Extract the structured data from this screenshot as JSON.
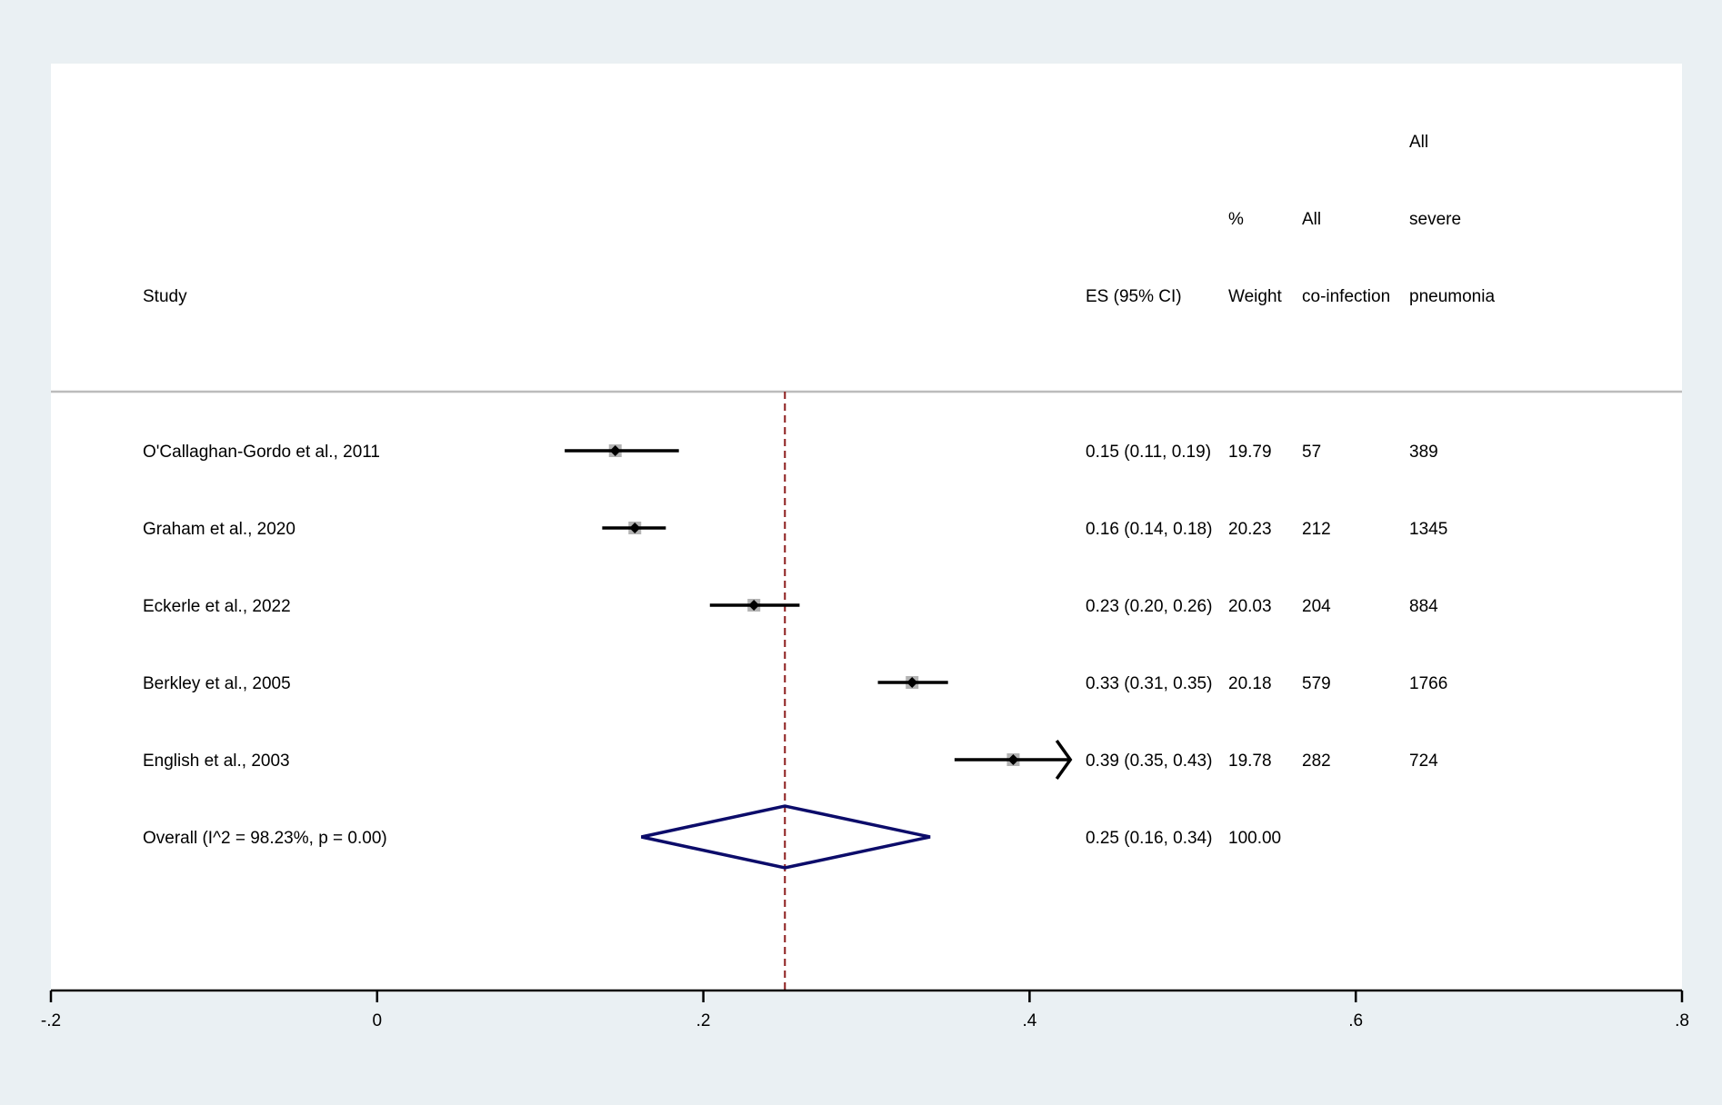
{
  "columns": {
    "study": "Study",
    "es": "ES (95% CI)",
    "weight_line1": "%",
    "weight_line2": "Weight",
    "coinf_line1": "All",
    "coinf_line2": "co-infection",
    "pneu_line1": "All",
    "pneu_line2": "severe",
    "pneu_line3": "pneumonia"
  },
  "chart_data": {
    "type": "forest",
    "xlim": [
      -0.2,
      0.8
    ],
    "x_ticks": [
      "-.2",
      "0",
      ".2",
      ".4",
      ".6",
      ".8"
    ],
    "x_tick_values": [
      -0.2,
      0,
      0.2,
      0.4,
      0.6,
      0.8
    ],
    "display_clip_upper": 0.425,
    "reference_line": 0.25,
    "studies": [
      {
        "label": "O'Callaghan-Gordo et al., 2011",
        "es": 0.146,
        "lo": 0.115,
        "hi": 0.185,
        "es_text": "0.15 (0.11, 0.19)",
        "weight": "19.79",
        "coinfection": "57",
        "pneumonia": "389"
      },
      {
        "label": "Graham et al., 2020",
        "es": 0.158,
        "lo": 0.138,
        "hi": 0.177,
        "es_text": "0.16 (0.14, 0.18)",
        "weight": "20.23",
        "coinfection": "212",
        "pneumonia": "1345"
      },
      {
        "label": "Eckerle et al., 2022",
        "es": 0.231,
        "lo": 0.204,
        "hi": 0.259,
        "es_text": "0.23 (0.20, 0.26)",
        "weight": "20.03",
        "coinfection": "204",
        "pneumonia": "884"
      },
      {
        "label": "Berkley et al., 2005",
        "es": 0.328,
        "lo": 0.307,
        "hi": 0.35,
        "es_text": "0.33 (0.31, 0.35)",
        "weight": "20.18",
        "coinfection": "579",
        "pneumonia": "1766"
      },
      {
        "label": "English et al., 2003",
        "es": 0.39,
        "lo": 0.354,
        "hi": 0.43,
        "es_text": "0.39 (0.35, 0.43)",
        "weight": "19.78",
        "coinfection": "282",
        "pneumonia": "724"
      }
    ],
    "overall": {
      "label": "Overall  (I^2 = 98.23%, p = 0.00)",
      "es": 0.25,
      "lo": 0.162,
      "hi": 0.339,
      "es_text": "0.25 (0.16, 0.34)",
      "weight": "100.00"
    },
    "colors": {
      "ci_line": "#000000",
      "marker_box": "#b3b3b3",
      "point": "#000000",
      "diamond": "#0c0c6a",
      "reference": "#8b1a1a",
      "separator": "#bcbcbc",
      "axis": "#000000"
    }
  }
}
